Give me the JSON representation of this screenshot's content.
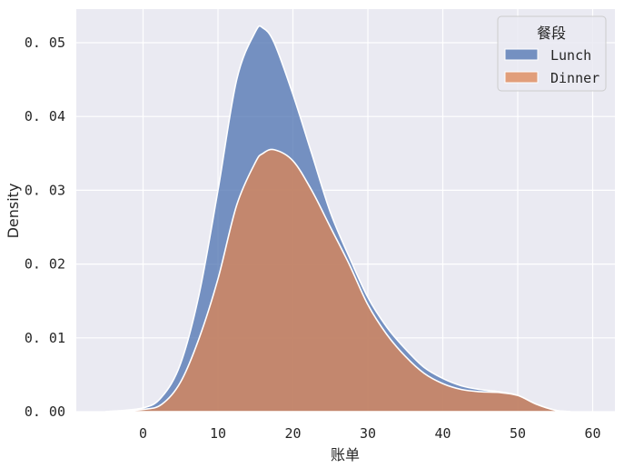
{
  "chart_data": {
    "type": "area",
    "subtype": "stacked kde",
    "title": "",
    "xlabel": "账单",
    "ylabel": "Density",
    "xlim": [
      -8.8,
      63
    ],
    "ylim": [
      0,
      0.0544
    ],
    "xticks": [
      "0",
      "10",
      "20",
      "30",
      "40",
      "50",
      "60"
    ],
    "yticks": [
      "0.00",
      "0.01",
      "0.02",
      "0.03",
      "0.04",
      "0.05"
    ],
    "grid": true,
    "legend": {
      "title": "餐段",
      "position": "upper right",
      "entries": [
        "Lunch",
        "Dinner"
      ]
    },
    "x": [
      -5,
      0,
      2.5,
      5,
      7.5,
      10,
      12.5,
      15,
      16,
      17.5,
      20,
      22.5,
      25,
      27.5,
      30,
      32.5,
      35,
      37.5,
      40,
      42.5,
      45,
      47.5,
      50,
      52.5,
      55,
      57
    ],
    "series": [
      {
        "name": "Dinner",
        "color": "#dd8452",
        "values": [
          0,
          0.0003,
          0.001,
          0.004,
          0.01,
          0.018,
          0.028,
          0.0338,
          0.035,
          0.0355,
          0.034,
          0.03,
          0.025,
          0.02,
          0.0145,
          0.0105,
          0.0075,
          0.0052,
          0.0038,
          0.003,
          0.0027,
          0.0026,
          0.0022,
          0.001,
          0.0002,
          0
        ]
      },
      {
        "name": "Lunch",
        "color": "#4c72b0",
        "values": [
          0,
          0.0002,
          0.001,
          0.0025,
          0.006,
          0.012,
          0.017,
          0.0177,
          0.017,
          0.0145,
          0.009,
          0.005,
          0.002,
          0.001,
          0.001,
          0.001,
          0.001,
          0.0008,
          0.0007,
          0.0005,
          0.0003,
          0.0001,
          0,
          0,
          0,
          0
        ]
      }
    ],
    "stacked_total": [
      0,
      0.0005,
      0.002,
      0.0065,
      0.016,
      0.03,
      0.045,
      0.0515,
      0.052,
      0.05,
      0.043,
      0.035,
      0.027,
      0.021,
      0.0155,
      0.0115,
      0.0085,
      0.006,
      0.0045,
      0.0035,
      0.003,
      0.0027,
      0.0022,
      0.001,
      0.0002,
      0
    ]
  },
  "colors": {
    "background": "#eaeaf2",
    "grid": "#ffffff",
    "lunch": "#4c72b0",
    "dinner": "#dd8452"
  }
}
